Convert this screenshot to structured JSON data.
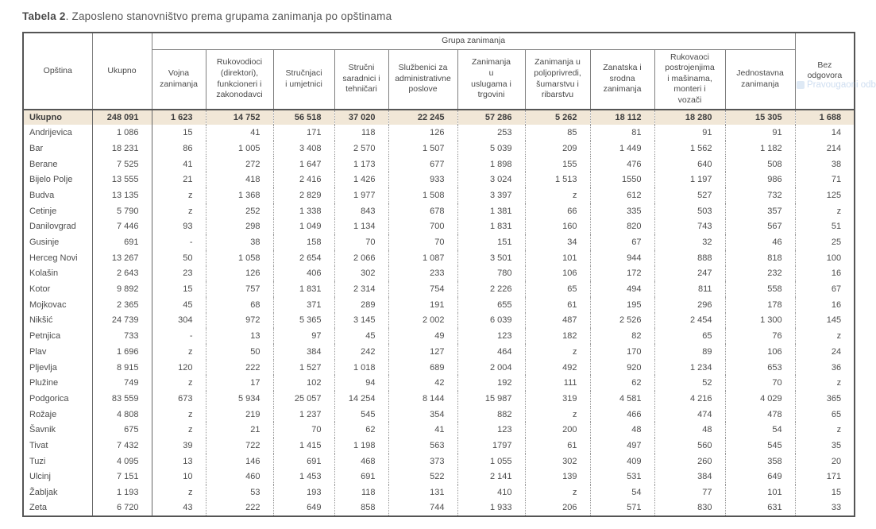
{
  "title": {
    "prefix": "Tabela 2",
    "rest": ". Zaposleno stanovništvo prema grupama zanimanja po opštinama"
  },
  "watermark": {
    "text": "Pravougaoni odb",
    "color": "#7fa8d9"
  },
  "colors": {
    "totals_row_bg": "#f1e7d7",
    "table_border": "#555555",
    "body_text": "#4d4d4d"
  },
  "table": {
    "corner_columns": [
      "Opština",
      "Ukupno"
    ],
    "group_header": "Grupa zanimanja",
    "group_columns": [
      "Vojna\nzanimanja",
      "Rukovodioci\n(direktori),\nfunkcioneri i\nzakonodavci",
      "Stručnjaci\ni umjetnici",
      "Stručni\nsaradnici i\ntehničari",
      "Službenici za\nadministrativne\nposlove",
      "Zanimanja\nu\nuslugama i\ntrgovini",
      "Zanimanja u\npoljoprivredi,\nšumarstvu i\nribarstvu",
      "Zanatska i\nsrodna\nzanimanja",
      "Rukovaoci\npostrojenjima\ni mašinama,\nmonteri i\nvozači",
      "Jednostavna\nzanimanja"
    ],
    "last_column": "Bez\nodgovora",
    "totals_row": {
      "label": "Ukupno",
      "values": [
        "248 091",
        "1 623",
        "14 752",
        "56 518",
        "37 020",
        "22 245",
        "57 286",
        "5 262",
        "18 112",
        "18 280",
        "15 305",
        "1 688"
      ]
    },
    "rows": [
      {
        "label": "Andrijevica",
        "values": [
          "1 086",
          "15",
          "41",
          "171",
          "118",
          "126",
          "253",
          "85",
          "81",
          "91",
          "91",
          "14"
        ]
      },
      {
        "label": "Bar",
        "values": [
          "18 231",
          "86",
          "1 005",
          "3 408",
          "2 570",
          "1 507",
          "5 039",
          "209",
          "1 449",
          "1 562",
          "1 182",
          "214"
        ]
      },
      {
        "label": "Berane",
        "values": [
          "7 525",
          "41",
          "272",
          "1 647",
          "1 173",
          "677",
          "1 898",
          "155",
          "476",
          "640",
          "508",
          "38"
        ]
      },
      {
        "label": "Bijelo Polje",
        "values": [
          "13 555",
          "21",
          "418",
          "2 416",
          "1 426",
          "933",
          "3 024",
          "1 513",
          "1550",
          "1 197",
          "986",
          "71"
        ]
      },
      {
        "label": "Budva",
        "values": [
          "13 135",
          "z",
          "1 368",
          "2 829",
          "1 977",
          "1 508",
          "3 397",
          "z",
          "612",
          "527",
          "732",
          "125"
        ]
      },
      {
        "label": "Cetinje",
        "values": [
          "5 790",
          "z",
          "252",
          "1 338",
          "843",
          "678",
          "1 381",
          "66",
          "335",
          "503",
          "357",
          "z"
        ]
      },
      {
        "label": "Danilovgrad",
        "values": [
          "7 446",
          "93",
          "298",
          "1 049",
          "1 134",
          "700",
          "1 831",
          "160",
          "820",
          "743",
          "567",
          "51"
        ]
      },
      {
        "label": "Gusinje",
        "values": [
          "691",
          "-",
          "38",
          "158",
          "70",
          "70",
          "151",
          "34",
          "67",
          "32",
          "46",
          "25"
        ]
      },
      {
        "label": "Herceg Novi",
        "values": [
          "13 267",
          "50",
          "1 058",
          "2 654",
          "2 066",
          "1 087",
          "3 501",
          "101",
          "944",
          "888",
          "818",
          "100"
        ]
      },
      {
        "label": "Kolašin",
        "values": [
          "2 643",
          "23",
          "126",
          "406",
          "302",
          "233",
          "780",
          "106",
          "172",
          "247",
          "232",
          "16"
        ]
      },
      {
        "label": "Kotor",
        "values": [
          "9 892",
          "15",
          "757",
          "1 831",
          "2 314",
          "754",
          "2 226",
          "65",
          "494",
          "811",
          "558",
          "67"
        ]
      },
      {
        "label": "Mojkovac",
        "values": [
          "2 365",
          "45",
          "68",
          "371",
          "289",
          "191",
          "655",
          "61",
          "195",
          "296",
          "178",
          "16"
        ]
      },
      {
        "label": "Nikšić",
        "values": [
          "24 739",
          "304",
          "972",
          "5 365",
          "3 145",
          "2 002",
          "6 039",
          "487",
          "2 526",
          "2 454",
          "1 300",
          "145"
        ]
      },
      {
        "label": "Petnjica",
        "values": [
          "733",
          "-",
          "13",
          "97",
          "45",
          "49",
          "123",
          "182",
          "82",
          "65",
          "76",
          "z"
        ]
      },
      {
        "label": "Plav",
        "values": [
          "1 696",
          "z",
          "50",
          "384",
          "242",
          "127",
          "464",
          "z",
          "170",
          "89",
          "106",
          "24"
        ]
      },
      {
        "label": "Pljevlja",
        "values": [
          "8 915",
          "120",
          "222",
          "1 527",
          "1 018",
          "689",
          "2 004",
          "492",
          "920",
          "1 234",
          "653",
          "36"
        ]
      },
      {
        "label": "Plužine",
        "values": [
          "749",
          "z",
          "17",
          "102",
          "94",
          "42",
          "192",
          "111",
          "62",
          "52",
          "70",
          "z"
        ]
      },
      {
        "label": "Podgorica",
        "values": [
          "83 559",
          "673",
          "5 934",
          "25 057",
          "14 254",
          "8 144",
          "15 987",
          "319",
          "4 581",
          "4 216",
          "4 029",
          "365"
        ]
      },
      {
        "label": "Rožaje",
        "values": [
          "4 808",
          "z",
          "219",
          "1 237",
          "545",
          "354",
          "882",
          "z",
          "466",
          "474",
          "478",
          "65"
        ]
      },
      {
        "label": "Šavnik",
        "values": [
          "675",
          "z",
          "21",
          "70",
          "62",
          "41",
          "123",
          "200",
          "48",
          "48",
          "54",
          "z"
        ]
      },
      {
        "label": "Tivat",
        "values": [
          "7 432",
          "39",
          "722",
          "1 415",
          "1 198",
          "563",
          "1797",
          "61",
          "497",
          "560",
          "545",
          "35"
        ]
      },
      {
        "label": "Tuzi",
        "values": [
          "4 095",
          "13",
          "146",
          "691",
          "468",
          "373",
          "1 055",
          "302",
          "409",
          "260",
          "358",
          "20"
        ]
      },
      {
        "label": "Ulcinj",
        "values": [
          "7 151",
          "10",
          "460",
          "1 453",
          "691",
          "522",
          "2 141",
          "139",
          "531",
          "384",
          "649",
          "171"
        ]
      },
      {
        "label": "Žabljak",
        "values": [
          "1 193",
          "z",
          "53",
          "193",
          "118",
          "131",
          "410",
          "z",
          "54",
          "77",
          "101",
          "15"
        ]
      },
      {
        "label": "Zeta",
        "values": [
          "6 720",
          "43",
          "222",
          "649",
          "858",
          "744",
          "1 933",
          "206",
          "571",
          "830",
          "631",
          "33"
        ]
      }
    ]
  }
}
